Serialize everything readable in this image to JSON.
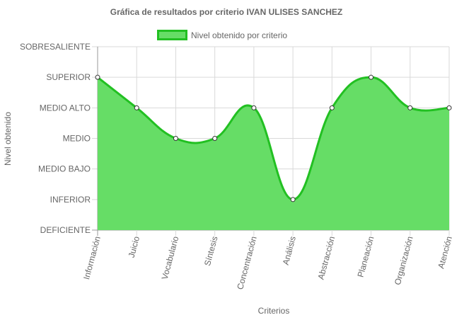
{
  "chart_data": {
    "type": "area",
    "title": "Gráfica de resultados por criterio IVAN ULISES SANCHEZ",
    "xlabel": "Criterios",
    "ylabel": "Nivel obtenido",
    "levels": [
      "DEFICIENTE",
      "INFERIOR",
      "MEDIO BAJO",
      "MEDIO",
      "MEDIO ALTO",
      "SUPERIOR",
      "SOBRESALIENTE"
    ],
    "categories": [
      "Información",
      "Juicio",
      "Vocabulario",
      "Síntesis",
      "Concentración",
      "Análisis",
      "Abstracción",
      "Planeación",
      "Organización",
      "Atención"
    ],
    "series": [
      {
        "name": "Nivel obtenido por criterio",
        "values": [
          "SUPERIOR",
          "MEDIO ALTO",
          "MEDIO",
          "MEDIO",
          "MEDIO ALTO",
          "INFERIOR",
          "MEDIO ALTO",
          "SUPERIOR",
          "MEDIO ALTO",
          "MEDIO ALTO"
        ]
      }
    ],
    "ylim": [
      "DEFICIENTE",
      "SOBRESALIENTE"
    ],
    "grid": true,
    "legend_position": "top",
    "fill_color": "#66dd66",
    "line_color": "#22c022",
    "point_color": "#ffffff"
  }
}
